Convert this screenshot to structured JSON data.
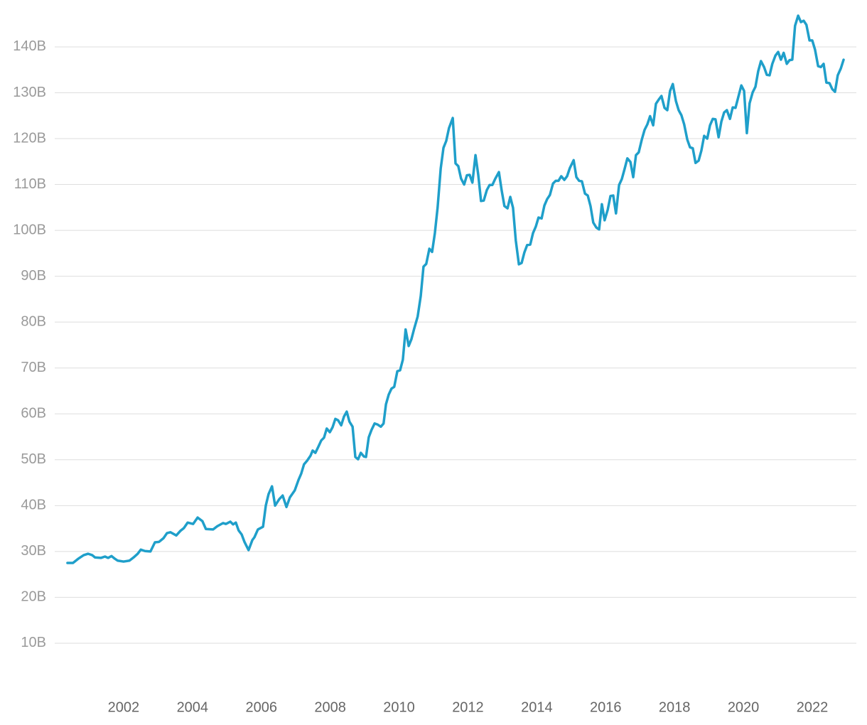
{
  "chart_data": {
    "type": "line",
    "x": [
      2000.37,
      2000.53,
      2000.68,
      2000.84,
      2000.97,
      2001.09,
      2001.17,
      2001.34,
      2001.46,
      2001.55,
      2001.65,
      2001.75,
      2001.83,
      2002.0,
      2002.17,
      2002.29,
      2002.41,
      2002.5,
      2002.62,
      2002.78,
      2002.91,
      2003.03,
      2003.16,
      2003.26,
      2003.36,
      2003.53,
      2003.65,
      2003.75,
      2003.86,
      2004.02,
      2004.15,
      2004.29,
      2004.39,
      2004.6,
      2004.72,
      2004.89,
      2004.97,
      2005.1,
      2005.18,
      2005.26,
      2005.34,
      2005.43,
      2005.51,
      2005.63,
      2005.74,
      2005.8,
      2005.9,
      2006.05,
      2006.13,
      2006.21,
      2006.31,
      2006.4,
      2006.52,
      2006.62,
      2006.73,
      2006.83,
      2006.97,
      2007.08,
      2007.16,
      2007.24,
      2007.33,
      2007.43,
      2007.49,
      2007.57,
      2007.66,
      2007.74,
      2007.82,
      2007.9,
      2007.99,
      2008.07,
      2008.15,
      2008.23,
      2008.32,
      2008.4,
      2008.48,
      2008.56,
      2008.65,
      2008.73,
      2008.81,
      2008.89,
      2008.98,
      2009.04,
      2009.12,
      2009.2,
      2009.29,
      2009.37,
      2009.47,
      2009.55,
      2009.62,
      2009.7,
      2009.78,
      2009.86,
      2009.95,
      2010.03,
      2010.11,
      2010.19,
      2010.28,
      2010.36,
      2010.44,
      2010.54,
      2010.63,
      2010.71,
      2010.79,
      2010.88,
      2010.96,
      2011.04,
      2011.12,
      2011.21,
      2011.29,
      2011.37,
      2011.45,
      2011.56,
      2011.64,
      2011.72,
      2011.8,
      2011.89,
      2011.97,
      2012.05,
      2012.13,
      2012.22,
      2012.3,
      2012.38,
      2012.46,
      2012.55,
      2012.63,
      2012.71,
      2012.79,
      2012.9,
      2012.98,
      2013.06,
      2013.15,
      2013.23,
      2013.31,
      2013.39,
      2013.48,
      2013.56,
      2013.64,
      2013.72,
      2013.81,
      2013.89,
      2013.97,
      2014.05,
      2014.14,
      2014.22,
      2014.3,
      2014.38,
      2014.47,
      2014.55,
      2014.63,
      2014.71,
      2014.8,
      2014.88,
      2014.96,
      2015.07,
      2015.15,
      2015.23,
      2015.31,
      2015.4,
      2015.48,
      2015.56,
      2015.64,
      2015.73,
      2015.81,
      2015.89,
      2015.97,
      2016.06,
      2016.14,
      2016.22,
      2016.3,
      2016.39,
      2016.47,
      2016.55,
      2016.63,
      2016.72,
      2016.8,
      2016.88,
      2016.96,
      2017.05,
      2017.13,
      2017.21,
      2017.29,
      2017.38,
      2017.46,
      2017.54,
      2017.62,
      2017.71,
      2017.79,
      2017.87,
      2017.95,
      2018.04,
      2018.12,
      2018.2,
      2018.28,
      2018.37,
      2018.45,
      2018.53,
      2018.61,
      2018.7,
      2018.78,
      2018.86,
      2018.95,
      2019.03,
      2019.11,
      2019.19,
      2019.28,
      2019.36,
      2019.44,
      2019.52,
      2019.61,
      2019.69,
      2019.77,
      2019.85,
      2019.94,
      2020.02,
      2020.1,
      2020.18,
      2020.27,
      2020.35,
      2020.43,
      2020.51,
      2020.6,
      2020.68,
      2020.76,
      2020.84,
      2020.93,
      2021.01,
      2021.09,
      2021.17,
      2021.26,
      2021.34,
      2021.42,
      2021.5,
      2021.59,
      2021.67,
      2021.75,
      2021.83,
      2021.92,
      2022.0,
      2022.08,
      2022.17,
      2022.25,
      2022.33,
      2022.41,
      2022.5,
      2022.58,
      2022.66,
      2022.74,
      2022.83,
      2022.91
    ],
    "values": [
      27.5,
      27.5,
      28.4,
      29.2,
      29.5,
      29.2,
      28.7,
      28.6,
      28.9,
      28.6,
      29.0,
      28.4,
      28.0,
      27.8,
      28.0,
      28.7,
      29.5,
      30.4,
      30.1,
      30.0,
      32.0,
      32.1,
      32.9,
      34.0,
      34.2,
      33.5,
      34.5,
      35.1,
      36.3,
      36.0,
      37.4,
      36.6,
      34.9,
      34.8,
      35.5,
      36.2,
      36.0,
      36.5,
      35.9,
      36.3,
      34.6,
      33.7,
      32.1,
      30.3,
      32.5,
      33.1,
      34.8,
      35.4,
      40.0,
      42.5,
      44.2,
      40.0,
      41.4,
      42.2,
      39.7,
      41.8,
      43.3,
      45.6,
      47.0,
      49.0,
      49.8,
      50.9,
      52.0,
      51.5,
      52.9,
      54.2,
      54.8,
      56.8,
      56.0,
      57.1,
      58.9,
      58.6,
      57.5,
      59.4,
      60.5,
      58.3,
      57.2,
      50.6,
      50.1,
      51.5,
      50.7,
      50.6,
      54.9,
      56.5,
      57.9,
      57.7,
      57.2,
      57.9,
      62.1,
      64.2,
      65.5,
      65.9,
      69.3,
      69.5,
      71.8,
      78.4,
      74.8,
      76.3,
      78.6,
      81.2,
      85.7,
      92.1,
      92.7,
      96.0,
      95.3,
      99.4,
      105.0,
      113.5,
      118.0,
      119.5,
      122.3,
      124.5,
      114.6,
      114.0,
      111.3,
      110.0,
      112.0,
      112.1,
      110.4,
      116.4,
      112.1,
      106.4,
      106.5,
      108.8,
      109.9,
      109.9,
      111.2,
      112.7,
      108.7,
      105.3,
      104.8,
      107.3,
      104.9,
      97.8,
      92.6,
      92.9,
      95.2,
      96.8,
      96.9,
      99.4,
      100.8,
      102.8,
      102.6,
      105.4,
      106.8,
      107.7,
      110.2,
      110.8,
      110.8,
      111.8,
      111.0,
      111.8,
      113.6,
      115.3,
      111.6,
      110.8,
      110.7,
      108.0,
      107.6,
      105.3,
      101.7,
      100.6,
      100.2,
      105.7,
      102.2,
      104.5,
      107.5,
      107.6,
      103.7,
      109.9,
      111.2,
      113.4,
      115.7,
      114.9,
      111.6,
      116.4,
      117.0,
      119.8,
      121.9,
      123.1,
      124.9,
      122.9,
      127.6,
      128.5,
      129.3,
      126.7,
      126.2,
      130.4,
      131.9,
      128.2,
      126.2,
      125.1,
      123.1,
      119.8,
      118.1,
      117.9,
      114.7,
      115.2,
      117.4,
      120.6,
      120.0,
      122.9,
      124.3,
      124.2,
      120.3,
      123.7,
      125.7,
      126.2,
      124.3,
      126.8,
      126.7,
      129.0,
      131.6,
      130.4,
      121.2,
      127.7,
      130.1,
      131.3,
      134.7,
      136.9,
      135.6,
      133.9,
      133.8,
      136.3,
      138.1,
      138.9,
      137.2,
      138.7,
      136.3,
      137.1,
      137.2,
      144.6,
      146.8,
      145.4,
      145.7,
      144.8,
      141.4,
      141.4,
      139.4,
      135.8,
      135.6,
      136.3,
      132.2,
      132.1,
      130.8,
      130.2,
      133.8,
      135.3,
      137.2
    ],
    "color": "#1f9fca",
    "xlim": [
      2000,
      2023.28
    ],
    "xticks": [
      2002,
      2004,
      2006,
      2008,
      2010,
      2012,
      2014,
      2016,
      2018,
      2020,
      2022
    ],
    "ylim": [
      0,
      150
    ],
    "yticks": [
      {
        "value": 10,
        "label": "10B"
      },
      {
        "value": 20,
        "label": "20B"
      },
      {
        "value": 30,
        "label": "30B"
      },
      {
        "value": 40,
        "label": "40B"
      },
      {
        "value": 50,
        "label": "50B"
      },
      {
        "value": 60,
        "label": "60B"
      },
      {
        "value": 70,
        "label": "70B"
      },
      {
        "value": 80,
        "label": "80B"
      },
      {
        "value": 90,
        "label": "90B"
      },
      {
        "value": 100,
        "label": "100B"
      },
      {
        "value": 110,
        "label": "110B"
      },
      {
        "value": 120,
        "label": "120B"
      },
      {
        "value": 130,
        "label": "130B"
      },
      {
        "value": 140,
        "label": "140B"
      }
    ],
    "grid": true
  }
}
